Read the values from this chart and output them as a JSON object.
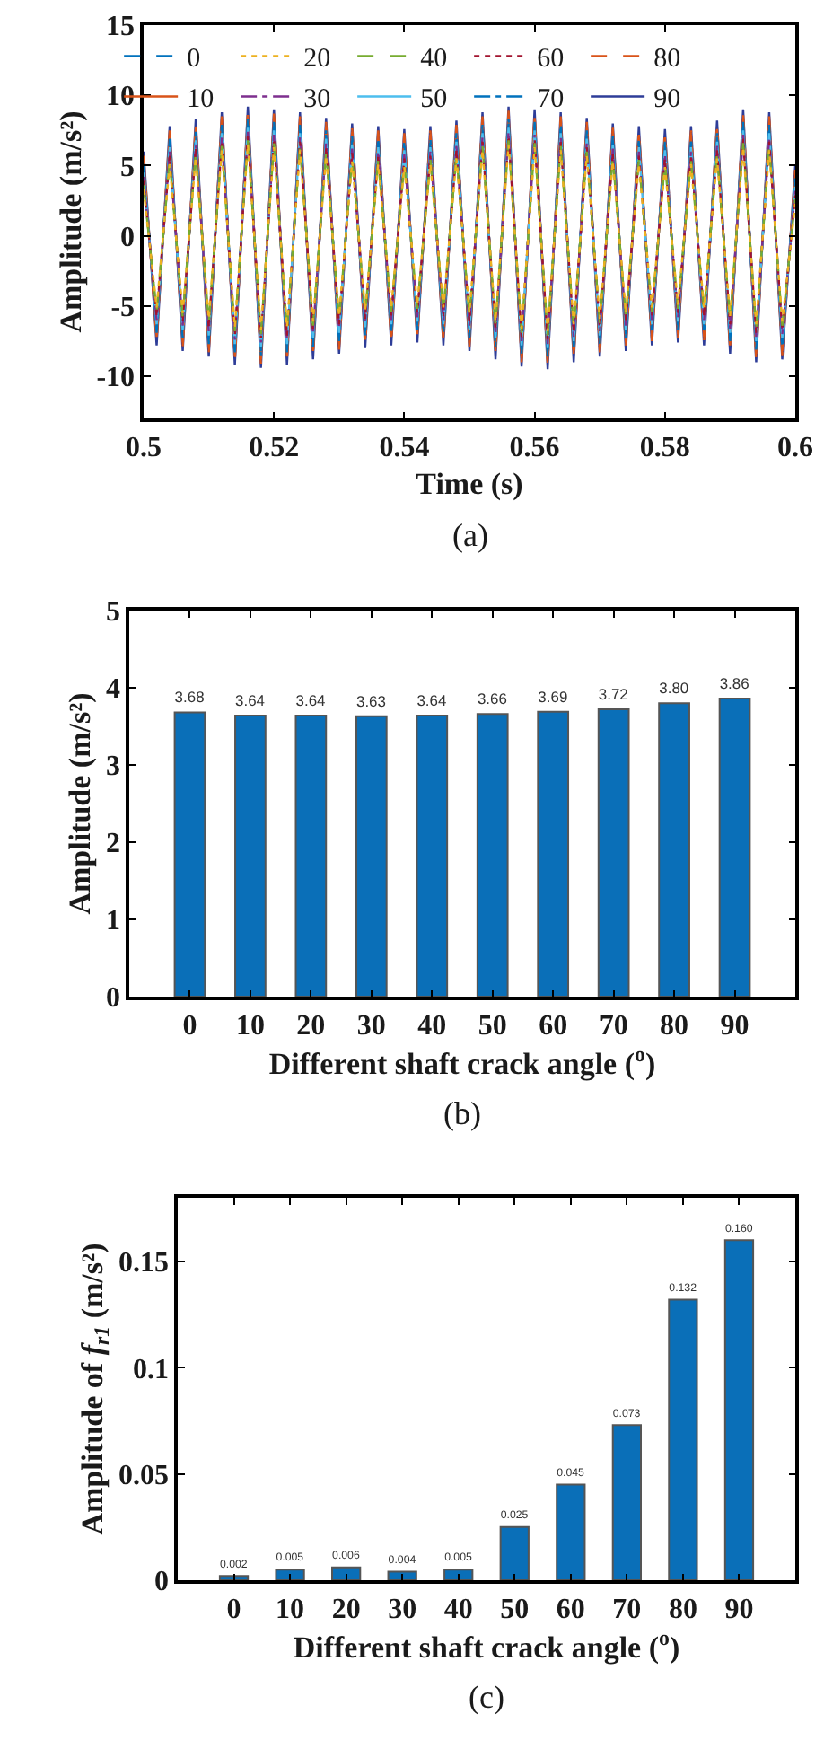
{
  "chart_data": [
    {
      "type": "line",
      "xlabel": "Time (s)",
      "ylabel": "Amplitude (m/s²)",
      "annotations": [
        "(a)"
      ],
      "legend": "top",
      "xlim": [
        0.5,
        0.6
      ],
      "xticks": [
        0.5,
        0.52,
        0.54,
        0.56,
        0.58,
        0.6
      ],
      "ylim": [
        -13,
        15
      ],
      "yticks": [
        -10,
        -5,
        0,
        5,
        10,
        15
      ],
      "x": [
        0.5,
        0.502,
        0.504,
        0.506,
        0.508,
        0.51,
        0.512,
        0.514,
        0.516,
        0.518,
        0.52,
        0.522,
        0.524,
        0.526,
        0.528,
        0.53,
        0.532,
        0.534,
        0.536,
        0.538,
        0.54,
        0.542,
        0.544,
        0.546,
        0.548,
        0.55,
        0.552,
        0.554,
        0.556,
        0.558,
        0.56,
        0.562,
        0.564,
        0.566,
        0.568,
        0.57,
        0.572,
        0.574,
        0.576,
        0.578,
        0.58,
        0.582,
        0.584,
        0.586,
        0.588,
        0.59,
        0.592,
        0.594,
        0.596,
        0.598,
        0.6
      ],
      "series": [
        {
          "name": "0",
          "color": "#0072bd",
          "line_style": "dashed",
          "values": [
            4.8,
            -6.6,
            6.6,
            -7.0,
            7.1,
            -7.4,
            7.6,
            -8.0,
            8.0,
            -8.2,
            7.8,
            -8.0,
            7.6,
            -7.6,
            7.2,
            -7.2,
            6.8,
            -6.8,
            6.6,
            -6.6,
            6.4,
            -6.4,
            6.6,
            -6.6,
            7.0,
            -7.0,
            7.6,
            -7.6,
            8.0,
            -8.1,
            7.8,
            -8.3,
            7.6,
            -7.8,
            7.2,
            -7.4,
            6.8,
            -7.0,
            6.6,
            -6.6,
            6.4,
            -6.4,
            6.6,
            -6.6,
            7.0,
            -7.2,
            7.8,
            -7.8,
            7.6,
            -7.6,
            3.8
          ]
        },
        {
          "name": "10",
          "color": "#d95319",
          "line_style": "solid",
          "values": [
            5.4,
            -7.2,
            7.2,
            -7.6,
            7.7,
            -8.0,
            8.2,
            -8.6,
            8.6,
            -8.8,
            8.4,
            -8.6,
            8.2,
            -8.2,
            7.8,
            -7.8,
            7.4,
            -7.4,
            7.2,
            -7.2,
            7.0,
            -7.0,
            7.2,
            -7.2,
            7.6,
            -7.6,
            8.2,
            -8.2,
            8.6,
            -8.7,
            8.4,
            -8.9,
            8.2,
            -8.4,
            7.8,
            -8.0,
            7.4,
            -7.6,
            7.2,
            -7.2,
            7.0,
            -7.0,
            7.2,
            -7.2,
            7.6,
            -7.8,
            8.4,
            -8.4,
            8.2,
            -8.2,
            4.4
          ]
        },
        {
          "name": "20",
          "color": "#edb120",
          "line_style": "dotted",
          "values": [
            3.3,
            -5.1,
            5.1,
            -5.5,
            5.6,
            -5.9,
            6.1,
            -6.5,
            6.5,
            -6.7,
            6.3,
            -6.5,
            6.1,
            -6.1,
            5.7,
            -5.7,
            5.3,
            -5.3,
            5.1,
            -5.1,
            4.9,
            -4.9,
            5.1,
            -5.1,
            5.5,
            -5.5,
            6.1,
            -6.1,
            6.5,
            -6.6,
            6.3,
            -6.8,
            6.1,
            -6.3,
            5.7,
            -5.9,
            5.3,
            -5.5,
            5.1,
            -5.1,
            4.9,
            -4.9,
            5.1,
            -5.1,
            5.5,
            -5.7,
            6.3,
            -6.3,
            6.1,
            -6.1,
            2.3
          ]
        },
        {
          "name": "30",
          "color": "#7e2f8e",
          "line_style": "dashdot",
          "values": [
            4.2,
            -6.0,
            6.0,
            -6.4,
            6.5,
            -6.8,
            7.0,
            -7.4,
            7.4,
            -7.6,
            7.2,
            -7.4,
            7.0,
            -7.0,
            6.6,
            -6.6,
            6.2,
            -6.2,
            6.0,
            -6.0,
            5.8,
            -5.8,
            6.0,
            -6.0,
            6.4,
            -6.4,
            7.0,
            -7.0,
            7.4,
            -7.5,
            7.2,
            -7.7,
            7.0,
            -7.2,
            6.6,
            -6.8,
            6.2,
            -6.4,
            6.0,
            -6.0,
            5.8,
            -5.8,
            6.0,
            -6.0,
            6.4,
            -6.6,
            7.2,
            -7.2,
            7.0,
            -7.0,
            3.2
          ]
        },
        {
          "name": "40",
          "color": "#77ac30",
          "line_style": "dashed",
          "values": [
            3.6,
            -5.4,
            5.4,
            -5.8,
            5.9,
            -6.2,
            6.4,
            -6.8,
            6.8,
            -7.0,
            6.6,
            -6.8,
            6.4,
            -6.4,
            6.0,
            -6.0,
            5.6,
            -5.6,
            5.4,
            -5.4,
            5.2,
            -5.2,
            5.4,
            -5.4,
            5.8,
            -5.8,
            6.4,
            -6.4,
            6.8,
            -6.9,
            6.6,
            -7.1,
            6.4,
            -6.6,
            6.0,
            -6.2,
            5.6,
            -5.8,
            5.4,
            -5.4,
            5.2,
            -5.2,
            5.4,
            -5.4,
            5.8,
            -6.0,
            6.6,
            -6.6,
            6.4,
            -6.4,
            2.6
          ]
        },
        {
          "name": "50",
          "color": "#4dbeee",
          "line_style": "solid",
          "values": [
            4.5,
            -6.3,
            6.3,
            -6.7,
            6.8,
            -7.1,
            7.3,
            -7.7,
            7.7,
            -7.9,
            7.5,
            -7.7,
            7.3,
            -7.3,
            6.9,
            -6.9,
            6.5,
            -6.5,
            6.3,
            -6.3,
            6.1,
            -6.1,
            6.3,
            -6.3,
            6.7,
            -6.7,
            7.3,
            -7.3,
            7.7,
            -7.8,
            7.5,
            -8.0,
            7.3,
            -7.5,
            6.9,
            -7.1,
            6.5,
            -6.7,
            6.3,
            -6.3,
            6.1,
            -6.1,
            6.3,
            -6.3,
            6.7,
            -6.9,
            7.5,
            -7.5,
            7.3,
            -7.3,
            3.5
          ]
        },
        {
          "name": "60",
          "color": "#a2142f",
          "line_style": "dotted",
          "values": [
            3.9,
            -5.7,
            5.7,
            -6.1,
            6.2,
            -6.5,
            6.7,
            -7.1,
            7.1,
            -7.3,
            6.9,
            -7.1,
            6.7,
            -6.7,
            6.3,
            -6.3,
            5.9,
            -5.9,
            5.7,
            -5.7,
            5.5,
            -5.5,
            5.7,
            -5.7,
            6.1,
            -6.1,
            6.7,
            -6.7,
            7.1,
            -7.2,
            6.9,
            -7.4,
            6.7,
            -6.9,
            6.3,
            -6.5,
            5.9,
            -6.1,
            5.7,
            -5.7,
            5.5,
            -5.5,
            5.7,
            -5.7,
            6.1,
            -6.3,
            6.9,
            -6.9,
            6.7,
            -6.7,
            2.9
          ]
        },
        {
          "name": "70",
          "color": "#0072bd",
          "line_style": "dashdot",
          "values": [
            5.1,
            -6.9,
            6.9,
            -7.3,
            7.4,
            -7.7,
            7.9,
            -8.3,
            8.3,
            -8.5,
            8.1,
            -8.3,
            7.9,
            -7.9,
            7.5,
            -7.5,
            7.1,
            -7.1,
            6.9,
            -6.9,
            6.7,
            -6.7,
            6.9,
            -6.9,
            7.3,
            -7.3,
            7.9,
            -7.9,
            8.3,
            -8.4,
            8.1,
            -8.6,
            7.9,
            -8.1,
            7.5,
            -7.7,
            7.1,
            -7.3,
            6.9,
            -6.9,
            6.7,
            -6.7,
            6.9,
            -6.9,
            7.3,
            -7.5,
            8.1,
            -8.1,
            7.9,
            -7.9,
            4.1
          ]
        },
        {
          "name": "80",
          "color": "#d95319",
          "line_style": "dashed",
          "values": [
            5.7,
            -7.5,
            7.5,
            -7.9,
            8.0,
            -8.3,
            8.5,
            -8.9,
            8.9,
            -9.1,
            8.7,
            -8.9,
            8.5,
            -8.5,
            8.1,
            -8.1,
            7.7,
            -7.7,
            7.5,
            -7.5,
            7.3,
            -7.3,
            7.5,
            -7.5,
            7.9,
            -7.9,
            8.5,
            -8.5,
            8.9,
            -9.0,
            8.7,
            -9.2,
            8.5,
            -8.7,
            8.1,
            -8.3,
            7.7,
            -7.9,
            7.5,
            -7.5,
            7.3,
            -7.3,
            7.5,
            -7.5,
            7.9,
            -8.1,
            8.7,
            -8.7,
            8.5,
            -8.5,
            4.7
          ]
        },
        {
          "name": "90",
          "color": "#2e3d98",
          "line_style": "solid",
          "values": [
            6.0,
            -7.8,
            7.8,
            -8.2,
            8.3,
            -8.6,
            8.8,
            -9.2,
            9.2,
            -9.4,
            9.0,
            -9.2,
            8.8,
            -8.8,
            8.4,
            -8.4,
            8.0,
            -8.0,
            7.8,
            -7.8,
            7.6,
            -7.6,
            7.8,
            -7.8,
            8.2,
            -8.2,
            8.8,
            -8.8,
            9.2,
            -9.3,
            9.0,
            -9.5,
            8.8,
            -9.0,
            8.4,
            -8.6,
            8.0,
            -8.2,
            7.8,
            -7.8,
            7.6,
            -7.6,
            7.8,
            -7.8,
            8.2,
            -8.4,
            9.0,
            -9.0,
            8.8,
            -8.8,
            5.0
          ]
        }
      ]
    },
    {
      "type": "bar",
      "xlabel": "Different shaft crack angle ($^{o}$)",
      "ylabel": "Amplitude (m/s²)",
      "annotations": [
        "(b)"
      ],
      "categories": [
        "0",
        "10",
        "20",
        "30",
        "40",
        "50",
        "60",
        "70",
        "80",
        "90"
      ],
      "values": [
        3.68,
        3.64,
        3.64,
        3.63,
        3.64,
        3.66,
        3.69,
        3.72,
        3.8,
        3.86
      ],
      "value_labels": [
        "3.68",
        "3.64",
        "3.64",
        "3.63",
        "3.64",
        "3.66",
        "3.69",
        "3.72",
        "3.80",
        "3.86"
      ],
      "color": "#0a6fb8",
      "ylim": [
        0,
        5
      ],
      "yticks": [
        0,
        1,
        2,
        3,
        4,
        5
      ]
    },
    {
      "type": "bar",
      "xlabel": "Different shaft crack angle ($^{o}$)",
      "ylabel": "Amplitude of f$_{r1}$ (m/s²)",
      "annotations": [
        "(c)"
      ],
      "categories": [
        "0",
        "10",
        "20",
        "30",
        "40",
        "50",
        "60",
        "70",
        "80",
        "90"
      ],
      "values": [
        0.002,
        0.005,
        0.006,
        0.004,
        0.005,
        0.025,
        0.045,
        0.073,
        0.132,
        0.16
      ],
      "value_labels": [
        "0.002",
        "0.005",
        "0.006",
        "0.004",
        "0.005",
        "0.025",
        "0.045",
        "0.073",
        "0.132",
        "0.160"
      ],
      "color": "#0a6fb8",
      "ylim": [
        0,
        0.18
      ],
      "yticks": [
        0,
        0.05,
        0.1,
        0.15
      ]
    }
  ]
}
